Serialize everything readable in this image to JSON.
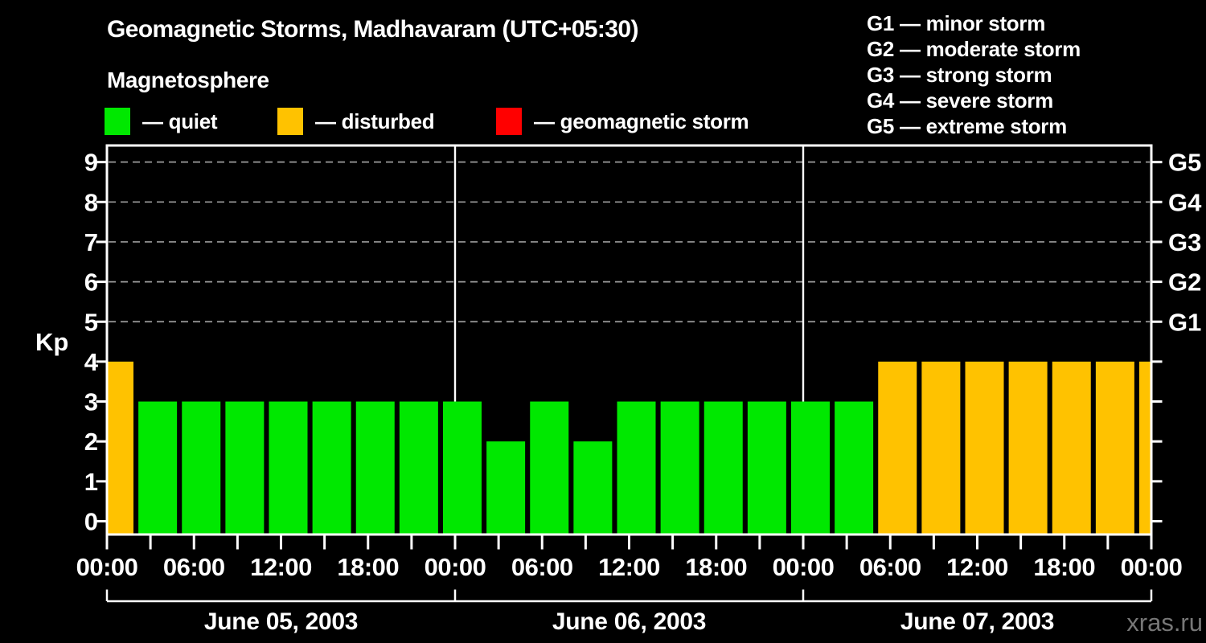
{
  "header": {
    "title": "Geomagnetic Storms, Madhavaram (UTC+05:30)",
    "subtitle": "Magnetosphere",
    "watermark": "xras.ru"
  },
  "kp_state_legend": [
    {
      "label": "— quiet",
      "state": "quiet"
    },
    {
      "label": "— disturbed",
      "state": "disturbed"
    },
    {
      "label": "— geomagnetic storm",
      "state": "storm"
    }
  ],
  "storm_scale_legend": [
    "G1 — minor storm",
    "G2 — moderate storm",
    "G3 — strong storm",
    "G4 — severe storm",
    "G5 — extreme storm"
  ],
  "chart_data": {
    "type": "bar",
    "title": "Geomagnetic Storms, Madhavaram (UTC+05:30)",
    "ylabel": "Kp",
    "ylim": [
      0,
      9
    ],
    "yticks": [
      0,
      1,
      2,
      3,
      4,
      5,
      6,
      7,
      8,
      9
    ],
    "grid_levels": [
      5,
      6,
      7,
      8,
      9
    ],
    "grid_style": "dashed",
    "legend_position": "top",
    "background": "#000000",
    "right_axis": [
      {
        "kp": 5,
        "label": "G1"
      },
      {
        "kp": 6,
        "label": "G2"
      },
      {
        "kp": 7,
        "label": "G3"
      },
      {
        "kp": 8,
        "label": "G4"
      },
      {
        "kp": 9,
        "label": "G5"
      }
    ],
    "hours_per_bar": 3,
    "x_tick_interval_hours": 3,
    "x_label_interval_hours": 6,
    "x_labels": [
      "00:00",
      "06:00",
      "12:00",
      "18:00",
      "00:00",
      "06:00",
      "12:00",
      "18:00",
      "00:00",
      "06:00",
      "12:00",
      "18:00",
      "00:00"
    ],
    "days": [
      {
        "date": "June 05, 2003",
        "kp": [
          4,
          3,
          3,
          3,
          3,
          3,
          3,
          3
        ],
        "states": [
          "disturbed",
          "quiet",
          "quiet",
          "quiet",
          "quiet",
          "quiet",
          "quiet",
          "quiet"
        ]
      },
      {
        "date": "June 06, 2003",
        "kp": [
          3,
          2,
          3,
          2,
          3,
          3,
          3,
          3
        ],
        "states": [
          "quiet",
          "quiet",
          "quiet",
          "quiet",
          "quiet",
          "quiet",
          "quiet",
          "quiet"
        ]
      },
      {
        "date": "June 07, 2003",
        "kp": [
          3,
          3,
          4,
          4,
          4,
          4,
          4,
          4
        ],
        "states": [
          "quiet",
          "quiet",
          "disturbed",
          "disturbed",
          "disturbed",
          "disturbed",
          "disturbed",
          "disturbed"
        ]
      }
    ],
    "next_interval_partial_bar": {
      "kp": 4,
      "state": "disturbed"
    },
    "colors": {
      "quiet": "#00E800",
      "disturbed": "#FFC200",
      "storm": "#FF0000",
      "grid": "#9C9C9C",
      "axis": "#FFFFFF"
    }
  }
}
